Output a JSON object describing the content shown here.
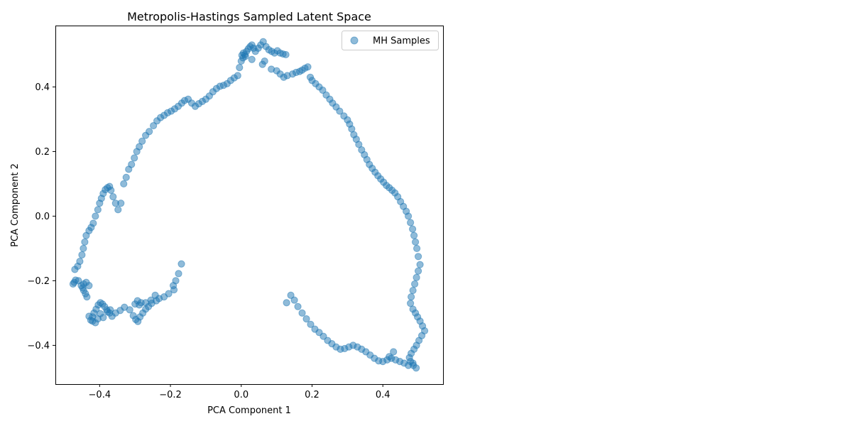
{
  "chart_data": {
    "type": "scatter",
    "title": "Metropolis-Hastings Sampled Latent Space",
    "xlabel": "PCA Component 1",
    "ylabel": "PCA Component 2",
    "xlim": [
      -0.525,
      0.57
    ],
    "ylim": [
      -0.52,
      0.59
    ],
    "xticks": [
      -0.4,
      -0.2,
      0.0,
      0.2,
      0.4
    ],
    "xtick_labels": [
      "−0.4",
      "−0.2",
      "0.0",
      "0.2",
      "0.4"
    ],
    "yticks": [
      -0.4,
      -0.2,
      0.0,
      0.2,
      0.4
    ],
    "ytick_labels": [
      "−0.4",
      "−0.2",
      "0.0",
      "0.2",
      "0.4"
    ],
    "grid": false,
    "legend_position": "top-right",
    "series": [
      {
        "name": "MH Samples",
        "color": "#1f77b4",
        "x": [
          -0.169,
          -0.177,
          -0.185,
          -0.192,
          -0.19,
          -0.205,
          -0.218,
          -0.232,
          -0.24,
          -0.253,
          -0.262,
          -0.27,
          -0.278,
          -0.286,
          -0.292,
          -0.298,
          -0.305,
          -0.315,
          -0.3,
          -0.293,
          -0.283,
          -0.288,
          -0.27,
          -0.255,
          -0.243,
          -0.33,
          -0.342,
          -0.355,
          -0.365,
          -0.372,
          -0.38,
          -0.386,
          -0.392,
          -0.398,
          -0.404,
          -0.41,
          -0.416,
          -0.42,
          -0.425,
          -0.39,
          -0.378,
          -0.37,
          -0.398,
          -0.405,
          -0.412,
          -0.42,
          -0.43,
          -0.436,
          -0.44,
          -0.445,
          -0.448,
          -0.452,
          -0.445,
          -0.438,
          -0.43,
          -0.46,
          -0.468,
          -0.472,
          -0.475,
          -0.47,
          -0.462,
          -0.456,
          -0.45,
          -0.446,
          -0.442,
          -0.438,
          -0.43,
          -0.424,
          -0.418,
          -0.412,
          -0.405,
          -0.4,
          -0.395,
          -0.39,
          -0.384,
          -0.378,
          -0.372,
          -0.368,
          -0.362,
          -0.355,
          -0.348,
          -0.34,
          -0.332,
          -0.325,
          -0.318,
          -0.31,
          -0.302,
          -0.295,
          -0.288,
          -0.28,
          -0.27,
          -0.26,
          -0.248,
          -0.238,
          -0.228,
          -0.218,
          -0.208,
          -0.198,
          -0.188,
          -0.178,
          -0.168,
          -0.16,
          -0.15,
          -0.14,
          -0.13,
          -0.12,
          -0.11,
          -0.1,
          -0.09,
          -0.08,
          -0.07,
          -0.06,
          -0.05,
          -0.04,
          -0.03,
          -0.02,
          -0.01,
          -0.005,
          0.0,
          0.005,
          0.01,
          0.015,
          0.02,
          0.025,
          0.03,
          0.035,
          0.04,
          0.048,
          0.055,
          0.062,
          0.07,
          0.078,
          0.086,
          0.094,
          0.102,
          0.11,
          0.118,
          0.126,
          0.002,
          0.006,
          0.012,
          0.03,
          0.06,
          0.066,
          0.085,
          0.1,
          0.11,
          0.12,
          0.13,
          0.145,
          0.155,
          0.165,
          0.172,
          0.18,
          0.188,
          0.195,
          0.2,
          0.21,
          0.22,
          0.23,
          0.24,
          0.25,
          0.258,
          0.268,
          0.278,
          0.29,
          0.3,
          0.306,
          0.312,
          0.318,
          0.325,
          0.332,
          0.34,
          0.348,
          0.355,
          0.362,
          0.37,
          0.378,
          0.386,
          0.394,
          0.402,
          0.41,
          0.418,
          0.426,
          0.434,
          0.442,
          0.45,
          0.458,
          0.466,
          0.472,
          0.478,
          0.484,
          0.488,
          0.492,
          0.496,
          0.5,
          0.505,
          0.5,
          0.495,
          0.49,
          0.485,
          0.48,
          0.478,
          0.485,
          0.492,
          0.498,
          0.505,
          0.512,
          0.518,
          0.51,
          0.502,
          0.495,
          0.488,
          0.48,
          0.475,
          0.478,
          0.486,
          0.494,
          0.485,
          0.472,
          0.46,
          0.448,
          0.436,
          0.424,
          0.412,
          0.4,
          0.388,
          0.376,
          0.364,
          0.352,
          0.34,
          0.328,
          0.316,
          0.304,
          0.292,
          0.28,
          0.268,
          0.256,
          0.244,
          0.232,
          0.22,
          0.208,
          0.196,
          0.184,
          0.172,
          0.16,
          0.15,
          0.14,
          0.128,
          0.43,
          0.418
        ],
        "y": [
          -0.148,
          -0.178,
          -0.2,
          -0.215,
          -0.228,
          -0.24,
          -0.25,
          -0.255,
          -0.262,
          -0.27,
          -0.28,
          -0.288,
          -0.3,
          -0.312,
          -0.326,
          -0.32,
          -0.308,
          -0.29,
          -0.272,
          -0.262,
          -0.268,
          -0.275,
          -0.268,
          -0.26,
          -0.245,
          -0.282,
          -0.292,
          -0.3,
          -0.31,
          -0.3,
          -0.29,
          -0.28,
          -0.272,
          -0.268,
          -0.275,
          -0.288,
          -0.3,
          -0.312,
          -0.322,
          -0.314,
          -0.296,
          -0.29,
          -0.302,
          -0.318,
          -0.33,
          -0.325,
          -0.31,
          -0.25,
          -0.24,
          -0.23,
          -0.222,
          -0.215,
          -0.21,
          -0.205,
          -0.215,
          -0.2,
          -0.198,
          -0.205,
          -0.21,
          -0.165,
          -0.155,
          -0.14,
          -0.12,
          -0.1,
          -0.08,
          -0.06,
          -0.045,
          -0.035,
          -0.022,
          0.0,
          0.02,
          0.04,
          0.055,
          0.07,
          0.082,
          0.088,
          0.092,
          0.08,
          0.06,
          0.04,
          0.02,
          0.04,
          0.1,
          0.12,
          0.145,
          0.16,
          0.18,
          0.2,
          0.215,
          0.232,
          0.25,
          0.262,
          0.28,
          0.295,
          0.305,
          0.312,
          0.32,
          0.325,
          0.332,
          0.34,
          0.35,
          0.358,
          0.362,
          0.35,
          0.34,
          0.348,
          0.355,
          0.362,
          0.372,
          0.385,
          0.395,
          0.402,
          0.405,
          0.41,
          0.42,
          0.428,
          0.435,
          0.46,
          0.48,
          0.49,
          0.5,
          0.51,
          0.518,
          0.525,
          0.53,
          0.52,
          0.51,
          0.52,
          0.53,
          0.54,
          0.525,
          0.515,
          0.51,
          0.505,
          0.512,
          0.505,
          0.502,
          0.5,
          0.498,
          0.505,
          0.495,
          0.485,
          0.47,
          0.48,
          0.455,
          0.45,
          0.44,
          0.43,
          0.435,
          0.44,
          0.445,
          0.448,
          0.452,
          0.458,
          0.462,
          0.43,
          0.42,
          0.41,
          0.4,
          0.39,
          0.375,
          0.362,
          0.35,
          0.338,
          0.325,
          0.31,
          0.298,
          0.285,
          0.27,
          0.252,
          0.238,
          0.222,
          0.205,
          0.19,
          0.175,
          0.16,
          0.148,
          0.136,
          0.125,
          0.115,
          0.105,
          0.095,
          0.088,
          0.08,
          0.072,
          0.06,
          0.045,
          0.03,
          0.015,
          0.0,
          -0.02,
          -0.04,
          -0.06,
          -0.08,
          -0.1,
          -0.125,
          -0.15,
          -0.17,
          -0.19,
          -0.21,
          -0.23,
          -0.25,
          -0.27,
          -0.288,
          -0.3,
          -0.312,
          -0.325,
          -0.34,
          -0.355,
          -0.37,
          -0.385,
          -0.4,
          -0.412,
          -0.425,
          -0.438,
          -0.45,
          -0.462,
          -0.47,
          -0.455,
          -0.462,
          -0.455,
          -0.45,
          -0.445,
          -0.44,
          -0.445,
          -0.45,
          -0.448,
          -0.44,
          -0.43,
          -0.42,
          -0.412,
          -0.405,
          -0.4,
          -0.405,
          -0.41,
          -0.412,
          -0.405,
          -0.395,
          -0.385,
          -0.372,
          -0.36,
          -0.35,
          -0.335,
          -0.318,
          -0.3,
          -0.28,
          -0.26,
          -0.245,
          -0.268,
          -0.42,
          -0.435
        ]
      }
    ]
  }
}
